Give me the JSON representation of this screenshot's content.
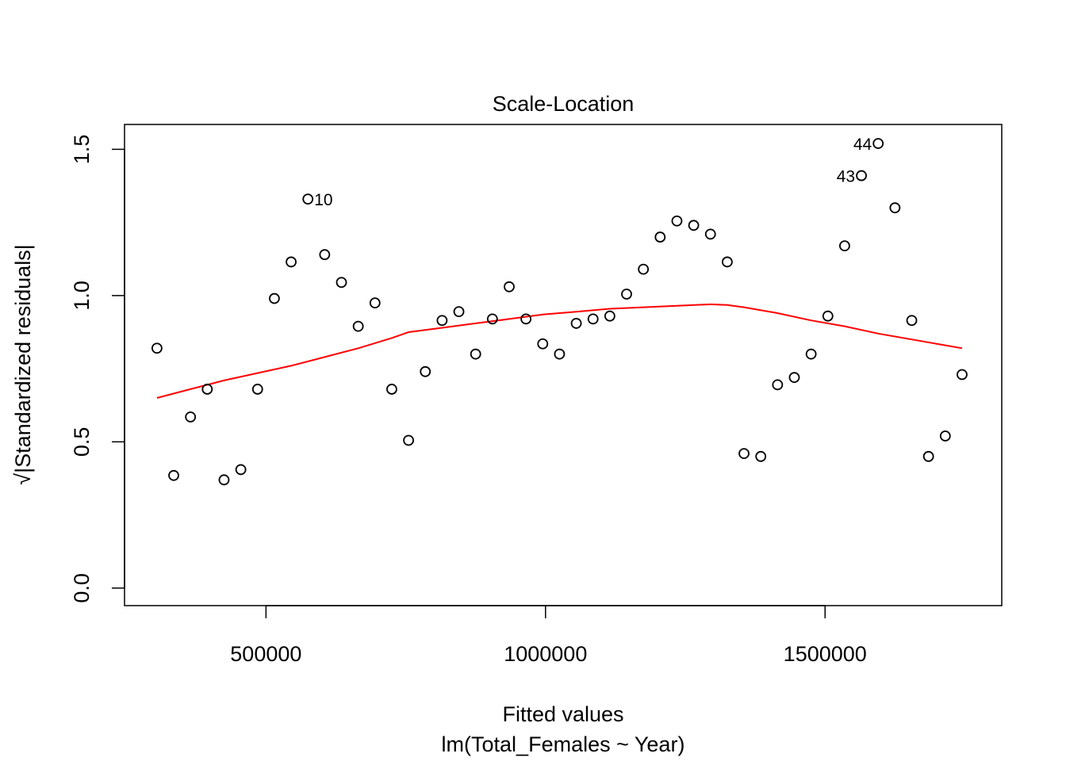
{
  "chart_data": {
    "type": "scatter",
    "title": "Scale-Location",
    "xlabel": "Fitted values",
    "subtitle": "lm(Total_Females ~ Year)",
    "ylabel": "√|Standardized residuals|",
    "xlim": [
      247000,
      1816000
    ],
    "ylim": [
      -0.06,
      1.585
    ],
    "x_ticks": [
      500000,
      1000000,
      1500000
    ],
    "y_ticks": [
      0.0,
      0.5,
      1.0,
      1.5
    ],
    "x_tick_labels": [
      "500000",
      "1000000",
      "1500000"
    ],
    "y_tick_labels": [
      "0.0",
      "0.5",
      "1.0",
      "1.5"
    ],
    "grid": false,
    "series": [
      {
        "kind": "points",
        "color": "#000000",
        "x": [
          305000,
          335000,
          365000,
          395000,
          425000,
          455000,
          485000,
          515000,
          545000,
          575000,
          605000,
          635000,
          665000,
          695000,
          725000,
          755000,
          785000,
          815000,
          845000,
          875000,
          905000,
          935000,
          965000,
          995000,
          1025000,
          1055000,
          1085000,
          1115000,
          1145000,
          1175000,
          1205000,
          1235000,
          1265000,
          1295000,
          1325000,
          1355000,
          1385000,
          1415000,
          1445000,
          1475000,
          1505000,
          1535000,
          1565000,
          1595000,
          1625000,
          1655000,
          1685000,
          1715000,
          1745000
        ],
        "y": [
          0.82,
          0.385,
          0.585,
          0.68,
          0.37,
          0.405,
          0.68,
          0.99,
          1.115,
          1.33,
          1.14,
          1.045,
          0.895,
          0.975,
          0.68,
          0.505,
          0.74,
          0.915,
          0.945,
          0.8,
          0.92,
          1.03,
          0.92,
          0.835,
          0.8,
          0.905,
          0.92,
          0.93,
          1.005,
          1.09,
          1.2,
          1.255,
          1.24,
          1.21,
          1.115,
          0.46,
          0.45,
          0.695,
          0.72,
          0.8,
          0.93,
          1.17,
          1.41,
          1.52,
          1.3,
          0.915,
          0.45,
          0.52,
          0.73
        ]
      },
      {
        "kind": "smooth-line",
        "color": "#ff0000",
        "x": [
          305000,
          365000,
          425000,
          485000,
          545000,
          605000,
          665000,
          725000,
          755000,
          815000,
          875000,
          935000,
          995000,
          1055000,
          1115000,
          1175000,
          1235000,
          1295000,
          1325000,
          1355000,
          1415000,
          1475000,
          1535000,
          1595000,
          1655000,
          1715000,
          1745000
        ],
        "y": [
          0.65,
          0.68,
          0.71,
          0.735,
          0.76,
          0.79,
          0.82,
          0.855,
          0.875,
          0.89,
          0.905,
          0.92,
          0.935,
          0.945,
          0.955,
          0.96,
          0.965,
          0.97,
          0.968,
          0.96,
          0.94,
          0.915,
          0.895,
          0.87,
          0.85,
          0.83,
          0.82
        ]
      }
    ],
    "annotations": [
      {
        "label": "10",
        "point_index": 9,
        "side": "right"
      },
      {
        "label": "43",
        "point_index": 42,
        "side": "left"
      },
      {
        "label": "44",
        "point_index": 43,
        "side": "left"
      }
    ]
  }
}
